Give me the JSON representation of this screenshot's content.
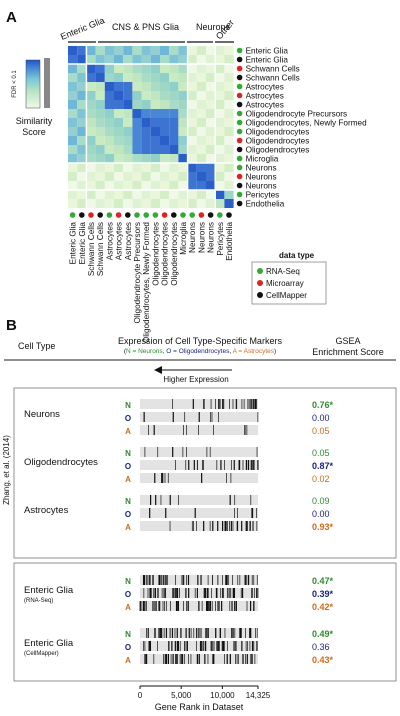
{
  "panel_a": {
    "label": "A",
    "groups": [
      "Enteric Glia",
      "CNS & PNS Glia",
      "Neurons",
      "Other"
    ],
    "rows": [
      "Enteric Glia",
      "Enteric Glia",
      "Schwann Cells",
      "Schwann Cells",
      "Astrocytes",
      "Astrocytes",
      "Astrocytes",
      "Oligodendrocyte Precursors",
      "Oligodendrocytes, Newly Formed",
      "Oligodendrocytes",
      "Oligodendrocytes",
      "Oligodendrocytes",
      "Microglia",
      "Neurons",
      "Neurons",
      "Neurons",
      "Pericytes",
      "Endothelia"
    ],
    "row_types": [
      "rna",
      "cm",
      "ma",
      "cm",
      "rna",
      "ma",
      "cm",
      "rna",
      "rna",
      "rna",
      "ma",
      "cm",
      "rna",
      "rna",
      "ma",
      "cm",
      "rna",
      "cm"
    ],
    "legend": {
      "fdr": "FDR < 0.1",
      "title1": "Similarity",
      "title2": "Score"
    },
    "data_type_legend": {
      "title": "data type",
      "items": [
        "RNA-Seq",
        "Microarray",
        "CellMapper"
      ]
    },
    "colors": {
      "rna": "#33aa33",
      "ma": "#dd2222",
      "cm": "#111111",
      "high": "#2255cc",
      "low": "#e6f5d0"
    }
  },
  "panel_b": {
    "label": "B",
    "header_cell_type": "Cell Type",
    "header_expression": "Expression of Cell Type-Specific Markers",
    "header_key": {
      "n": "N = Neurons",
      "o": "O = Oligodendrocytes",
      "a": "A = Astrocytes"
    },
    "header_gsea1": "GSEA",
    "header_gsea2": "Enrichment Score",
    "arrow_label": "Higher Expression",
    "side_label": "Zhang, et al. (2014)",
    "groups": [
      {
        "name": "Neurons",
        "sub": "",
        "scores": [
          "0.76*",
          "0.00",
          "0.05"
        ]
      },
      {
        "name": "Oligodendrocytes",
        "sub": "",
        "scores": [
          "0.05",
          "0.87*",
          "0.02"
        ]
      },
      {
        "name": "Astrocytes",
        "sub": "",
        "scores": [
          "0.09",
          "0.00",
          "0.93*"
        ]
      },
      {
        "name": "Enteric Glia",
        "sub": "(RNA-Seq)",
        "scores": [
          "0.47*",
          "0.39*",
          "0.42*"
        ]
      },
      {
        "name": "Enteric Glia",
        "sub": "(CellMapper)",
        "scores": [
          "0.49*",
          "0.36",
          "0.43*"
        ]
      }
    ],
    "letters": [
      "N",
      "O",
      "A"
    ],
    "letter_colors": [
      "#2e8b2e",
      "#1a237e",
      "#d2691e"
    ],
    "axis": {
      "ticks": [
        "0",
        "5,000",
        "10,000",
        "14,325"
      ],
      "tick_values": [
        0,
        5000,
        10000,
        14325
      ],
      "max": 14325,
      "label": "Gene Rank in Dataset"
    }
  }
}
